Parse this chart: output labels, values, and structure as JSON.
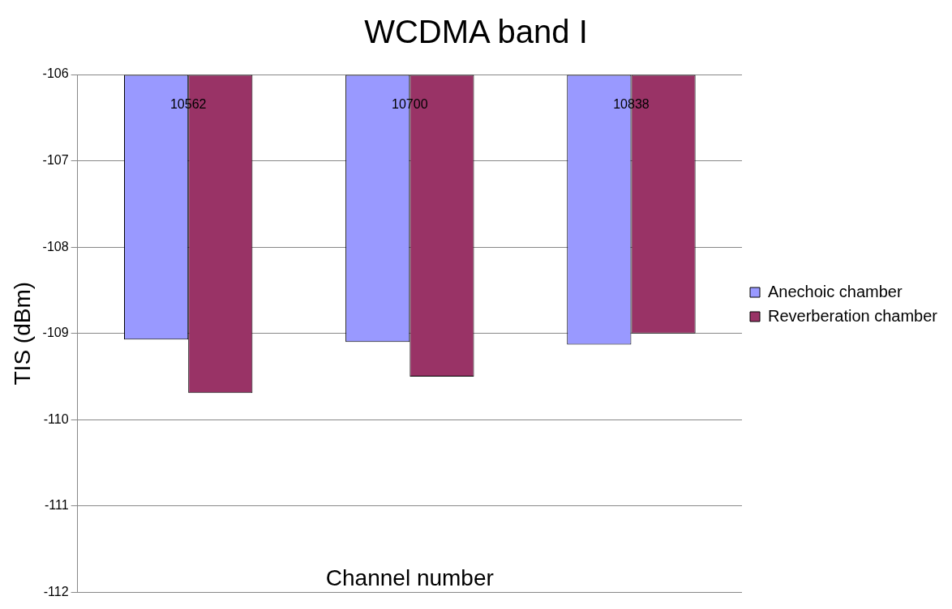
{
  "chart_data": {
    "type": "bar",
    "title": "WCDMA band I",
    "xlabel": "Channel number",
    "ylabel": "TIS (dBm)",
    "categories": [
      "10562",
      "10700",
      "10838"
    ],
    "series": [
      {
        "name": "Anechoic chamber",
        "color": "#9999ff",
        "values": [
          -109.07,
          -109.1,
          -109.13
        ]
      },
      {
        "name": "Reverberation chamber",
        "color": "#993366",
        "values": [
          -109.69,
          -109.5,
          -109.0
        ]
      }
    ],
    "ylim": [
      -112,
      -106
    ],
    "yticks": [
      -112,
      -111,
      -110,
      -109,
      -108,
      -107,
      -106
    ],
    "grid": "y",
    "legend": "right"
  }
}
